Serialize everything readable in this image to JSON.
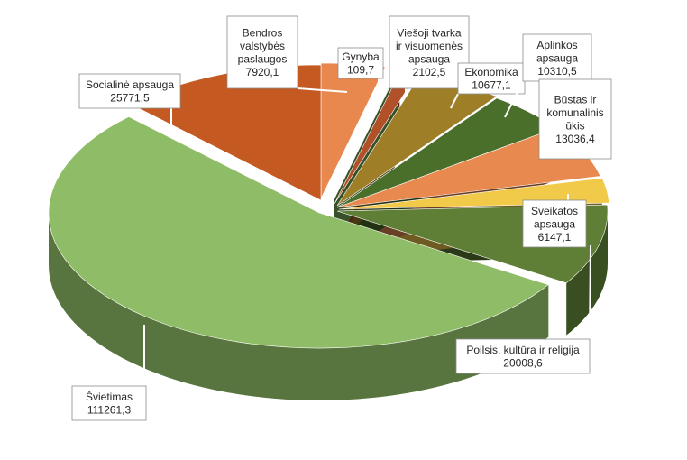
{
  "chart_data": {
    "type": "pie",
    "title": "",
    "categories": [
      "Bendros valstybės paslaugos",
      "Gynyba",
      "Viešoji tvarka ir visuomenės apsauga",
      "Ekonomika",
      "Aplinkos apsauga",
      "Būstas ir komunalinis ūkis",
      "Sveikatos apsauga",
      "Poilsis, kultūra ir religija",
      "Švietimas",
      "Socialinė apsauga"
    ],
    "values": [
      7920.1,
      109.7,
      2102.5,
      10677.1,
      10310.5,
      13036.4,
      6147.1,
      20008.6,
      111261.3,
      25771.5
    ],
    "value_labels": [
      "7920,1",
      "109,7",
      "2102,5",
      "10677,1",
      "10310,5",
      "13036,4",
      "6147,1",
      "20008,6",
      "111261,3",
      "25771,5"
    ],
    "label_lines": [
      [
        "Bendros",
        "valstybės",
        "paslaugos",
        "7920,1"
      ],
      [
        "Gynyba",
        "109,7"
      ],
      [
        "Viešoji tvarka",
        "ir visuomenės",
        "apsauga",
        "2102,5"
      ],
      [
        "Ekonomika",
        "10677,1"
      ],
      [
        "Aplinkos",
        "apsauga",
        "10310,5"
      ],
      [
        "Būstas ir",
        "komunalinis",
        "ūkis",
        "13036,4"
      ],
      [
        "Sveikatos",
        "apsauga",
        "6147,1"
      ],
      [
        "Poilsis, kultūra ir religija",
        "20008,6"
      ],
      [
        "Švietimas",
        "111261,3"
      ],
      [
        "Socialinė apsauga",
        "25771,5"
      ]
    ],
    "colors": [
      "#E8884E",
      "#7FB55B",
      "#B0512A",
      "#9E7E27",
      "#4A6F2A",
      "#E8894F",
      "#F2CA4A",
      "#5E7F35",
      "#8FBC66",
      "#C45A22"
    ],
    "legend": "none",
    "style": "3d-exploded"
  }
}
